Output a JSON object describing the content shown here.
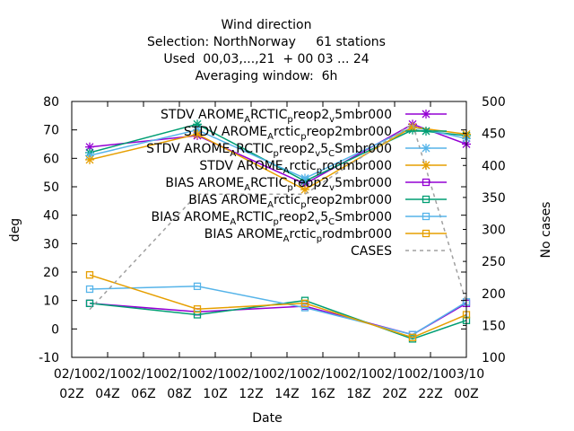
{
  "chart_data": {
    "type": "line",
    "title_lines": [
      "Wind direction",
      "Selection: NorthNorway     61 stations",
      "Used  00,03,...,21  + 00 03 ... 24",
      "Averaging window:  6h"
    ],
    "xlabel": "Date",
    "ylabel": "deg",
    "y2label": "No cases",
    "ylim": [
      -10,
      80
    ],
    "y2lim": [
      100,
      500
    ],
    "xlim": [
      0,
      22
    ],
    "grid": false,
    "legend_position": "top-right",
    "x_ticks": [
      {
        "x": 0,
        "line1": "02/10",
        "line2": "02Z"
      },
      {
        "x": 2,
        "line1": "02/10",
        "line2": "04Z"
      },
      {
        "x": 4,
        "line1": "02/10",
        "line2": "06Z"
      },
      {
        "x": 6,
        "line1": "02/10",
        "line2": "08Z"
      },
      {
        "x": 8,
        "line1": "02/10",
        "line2": "10Z"
      },
      {
        "x": 10,
        "line1": "02/10",
        "line2": "12Z"
      },
      {
        "x": 12,
        "line1": "02/10",
        "line2": "14Z"
      },
      {
        "x": 14,
        "line1": "02/10",
        "line2": "16Z"
      },
      {
        "x": 16,
        "line1": "02/10",
        "line2": "18Z"
      },
      {
        "x": 18,
        "line1": "02/10",
        "line2": "20Z"
      },
      {
        "x": 20,
        "line1": "02/10",
        "line2": "22Z"
      },
      {
        "x": 22,
        "line1": "03/10",
        "line2": "00Z"
      }
    ],
    "y_ticks": [
      "-10",
      "0",
      "10",
      "20",
      "30",
      "40",
      "50",
      "60",
      "70",
      "80"
    ],
    "y2_ticks": [
      "100",
      "150",
      "200",
      "250",
      "300",
      "350",
      "400",
      "450",
      "500"
    ],
    "series": [
      {
        "name": "STDV AROME_ARCTIC_preop2_v5mbr000",
        "legend_base": "STDV AROME",
        "legend_parts": [
          "A",
          "RCTIC",
          "p",
          "reop2",
          "v",
          "5mbr000"
        ],
        "color": "#9400d3",
        "marker": "x-star",
        "axis": "y",
        "x": [
          1,
          7,
          13,
          19,
          22
        ],
        "y": [
          64,
          68,
          51,
          72,
          65
        ]
      },
      {
        "name": "STDV AROME_Arctic_preop2mbr000",
        "legend_base": "STDV AROME",
        "legend_parts": [
          "A",
          "rctic",
          "p",
          "reop2mbr000"
        ],
        "color": "#009e73",
        "marker": "x-star",
        "axis": "y",
        "x": [
          1,
          7,
          13,
          19,
          22
        ],
        "y": [
          62,
          72,
          52,
          70,
          68
        ]
      },
      {
        "name": "STDV AROME_ARCTIC_preop2_v5_CSmbr000",
        "legend_base": "STDV AROME",
        "legend_parts": [
          "A",
          "RCTIC",
          "p",
          "reop2",
          "v",
          "5",
          "C",
          "Smbr000"
        ],
        "color": "#56b4e9",
        "marker": "x-star",
        "axis": "y",
        "x": [
          1,
          7,
          13,
          19,
          22
        ],
        "y": [
          61,
          70,
          53,
          71,
          67
        ]
      },
      {
        "name": "STDV AROME_Arctic_prodmbr000",
        "legend_base": "STDV AROME",
        "legend_parts": [
          "A",
          "rctic",
          "p",
          "rodmbr000"
        ],
        "color": "#e69f00",
        "marker": "x-star",
        "axis": "y",
        "x": [
          1,
          7,
          13,
          19,
          22
        ],
        "y": [
          59.5,
          68.5,
          49,
          71,
          68.5
        ]
      },
      {
        "name": "BIAS AROME_ARCTIC_preop2_v5mbr000",
        "legend_base": "BIAS AROME",
        "legend_parts": [
          "A",
          "RCTIC",
          "p",
          "reop2",
          "v",
          "5mbr000"
        ],
        "color": "#9400d3",
        "marker": "square",
        "axis": "y",
        "x": [
          1,
          7,
          13,
          19,
          22
        ],
        "y": [
          9,
          6,
          8,
          -2,
          9
        ]
      },
      {
        "name": "BIAS AROME_Arctic_preop2mbr000",
        "legend_base": "BIAS AROME",
        "legend_parts": [
          "A",
          "rctic",
          "p",
          "reop2mbr000"
        ],
        "color": "#009e73",
        "marker": "square",
        "axis": "y",
        "x": [
          1,
          7,
          13,
          19,
          22
        ],
        "y": [
          9,
          5,
          10,
          -3.5,
          3
        ]
      },
      {
        "name": "BIAS AROME_ARCTIC_preop2_v5_CSmbr000",
        "legend_base": "BIAS AROME",
        "legend_parts": [
          "A",
          "RCTIC",
          "p",
          "reop2",
          "v",
          "5",
          "C",
          "Smbr000"
        ],
        "color": "#56b4e9",
        "marker": "square",
        "axis": "y",
        "x": [
          1,
          7,
          13,
          19,
          22
        ],
        "y": [
          14,
          15,
          7.5,
          -2,
          9.5
        ]
      },
      {
        "name": "BIAS AROME_Arctic_prodmbr000",
        "legend_base": "BIAS AROME",
        "legend_parts": [
          "A",
          "rctic",
          "p",
          "rodmbr000"
        ],
        "color": "#e69f00",
        "marker": "square",
        "axis": "y",
        "x": [
          1,
          7,
          13,
          19,
          22
        ],
        "y": [
          19,
          7,
          9,
          -3,
          5
        ]
      },
      {
        "name": "CASES",
        "legend_base": "CASES",
        "legend_parts": [],
        "color": "#a0a0a0",
        "marker": "none",
        "dashed": true,
        "axis": "y2",
        "x": [
          1,
          7,
          13,
          19,
          22
        ],
        "y": [
          175,
          355,
          355,
          465,
          185
        ]
      }
    ]
  }
}
